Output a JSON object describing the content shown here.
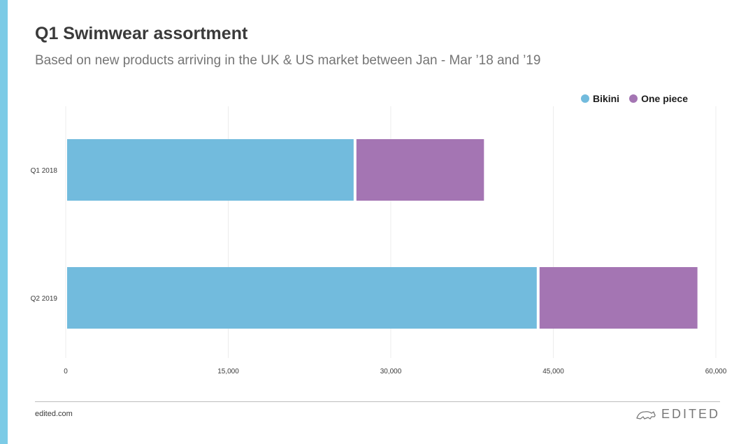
{
  "header": {
    "title": "Q1 Swimwear assortment",
    "subtitle": "Based on new products arriving in the UK & US market between Jan - Mar ’18 and ’19"
  },
  "footer": {
    "source": "edited.com",
    "brand": "EDITED"
  },
  "colors": {
    "bikini": "#72bbdd",
    "one_piece": "#a475b3",
    "accent_strip": "#7ccbe6"
  },
  "chart_data": {
    "type": "bar",
    "orientation": "horizontal",
    "stacked": true,
    "categories": [
      "Q1 2018",
      "Q2 2019"
    ],
    "series": [
      {
        "name": "Bikini",
        "values": [
          26700,
          43600
        ]
      },
      {
        "name": "One piece",
        "values": [
          11900,
          14700
        ]
      }
    ],
    "xlim": [
      0,
      60000
    ],
    "x_ticks": [
      {
        "value": 0,
        "label": "0"
      },
      {
        "value": 15000,
        "label": "15,000"
      },
      {
        "value": 30000,
        "label": "30,000"
      },
      {
        "value": 45000,
        "label": "45,000"
      },
      {
        "value": 60000,
        "label": "60,000"
      }
    ],
    "grid": "vertical",
    "legend": "top-right"
  }
}
